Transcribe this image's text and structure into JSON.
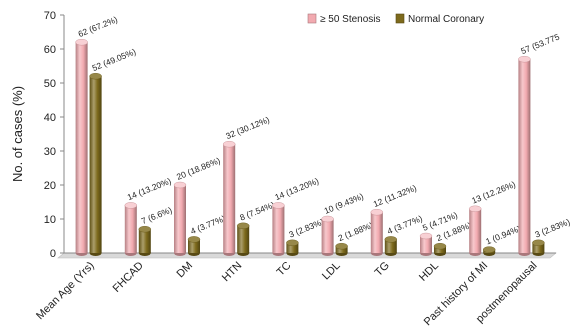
{
  "chart_data": {
    "type": "bar",
    "title": "",
    "xlabel": "",
    "ylabel": "No. of cases (%)",
    "ylim": [
      0,
      70
    ],
    "yticks": [
      0,
      10,
      20,
      30,
      40,
      50,
      60,
      70
    ],
    "grid": false,
    "legend_position": "top-right",
    "style": "3d-cylinder",
    "categories": [
      "Mean Age (Yrs)",
      "FHCAD",
      "DM",
      "HTN",
      "TC",
      "LDL",
      "TG",
      "HDL",
      "Past history of MI",
      "postmenopausal"
    ],
    "series": [
      {
        "name": "≥ 50 Stenosis",
        "color": "#f2aab0",
        "values": [
          62,
          14,
          20,
          32,
          14,
          10,
          12,
          5,
          13,
          57
        ],
        "labels": [
          "62 (67.2%)",
          "14 (13.20%)",
          "20 (18.86%)",
          "32 (30.12%)",
          "14 (13.20%)",
          "10 (9.43%)",
          "12 (11.32%)",
          "5 (4.71%)",
          "13 (12.26%)",
          "57 (53.775"
        ]
      },
      {
        "name": "Normal Coronary",
        "color": "#7d6a1c",
        "values": [
          52,
          7,
          4,
          8,
          3,
          2,
          4,
          2,
          1,
          3
        ],
        "labels": [
          "52 (49.05%)",
          "7 (6.6%)",
          "4 (3.77%)",
          "8 (7.54%)",
          "3 (2.83%)",
          "2 (1.88%)",
          "4 (3.77%)",
          "2 (1.88%)",
          "1 (0.94%)",
          "3 (2.83%)"
        ]
      }
    ]
  }
}
